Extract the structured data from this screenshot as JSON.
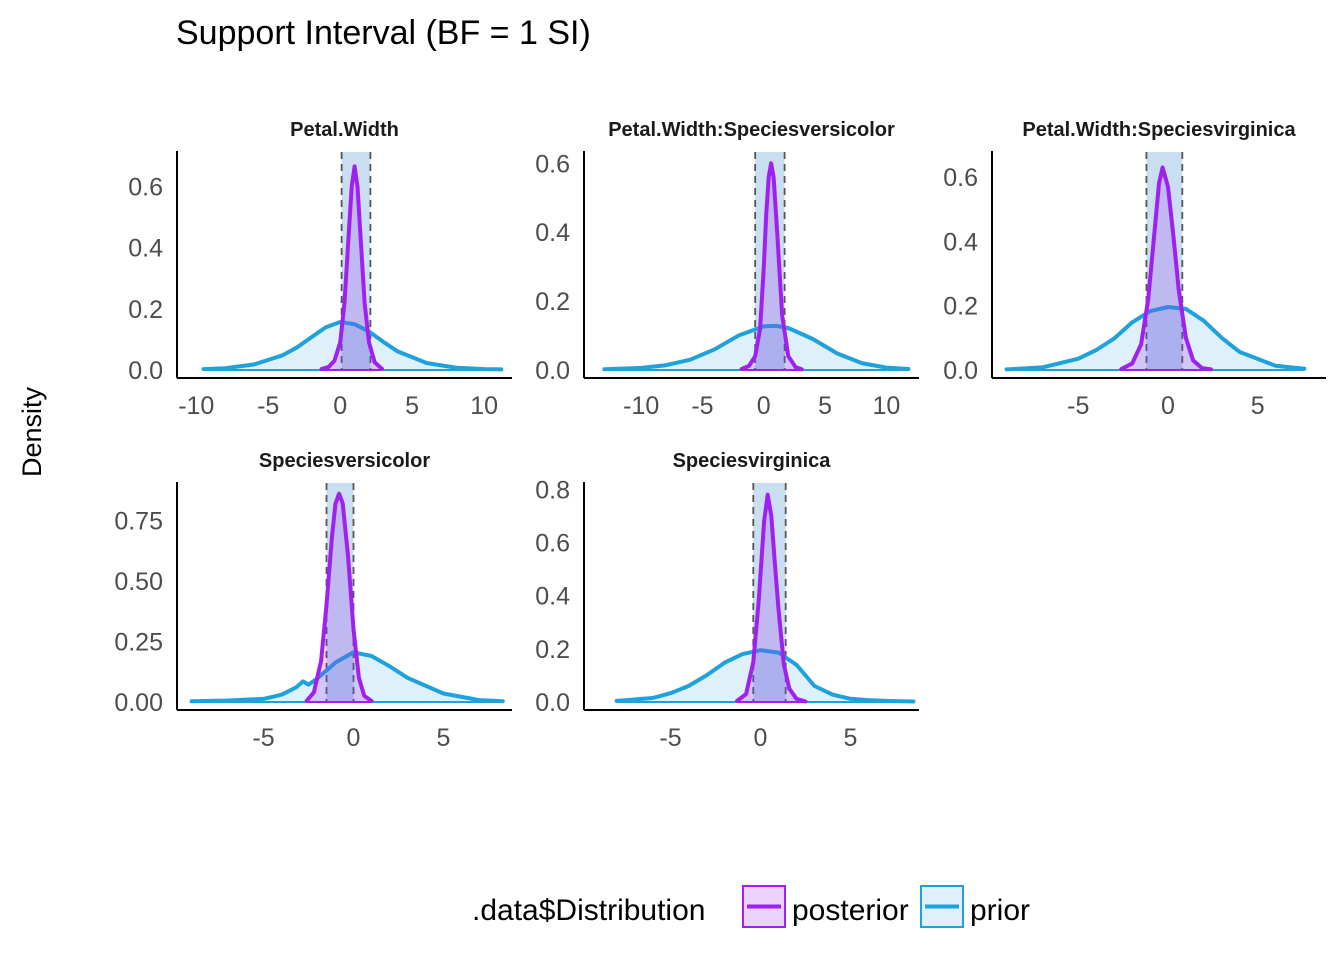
{
  "chart_data": {
    "type": "area",
    "title": "Support Interval (BF = 1 SI)",
    "xlabel": "",
    "ylabel": "Density",
    "legend": {
      "title": ".data$Distribution",
      "position": "bottom",
      "entries": [
        {
          "name": "posterior",
          "color": "#A020F0"
        },
        {
          "name": "prior",
          "color": "#1FA2DC"
        }
      ]
    },
    "panels": [
      {
        "name": "Petal.Width",
        "xlim": [
          -11.2,
          11.8
        ],
        "ylim": [
          0,
          0.71
        ],
        "xticks": [
          -10,
          -5,
          0,
          5,
          10
        ],
        "xtick_labels": [
          "-10",
          "-5",
          "0",
          "5",
          "10"
        ],
        "yticks": [
          0,
          0.2,
          0.4,
          0.6
        ],
        "ytick_labels": [
          "0.0",
          "0.2",
          "0.4",
          "0.6"
        ],
        "si": [
          0.1,
          2.1
        ],
        "series": [
          {
            "name": "prior",
            "x": [
              -9.5,
              -8,
              -6,
              -4,
              -3,
              -2,
              -1,
              0,
              1,
              2,
              3,
              4,
              6,
              8,
              10,
              11.2
            ],
            "y": [
              0.003,
              0.006,
              0.018,
              0.048,
              0.074,
              0.107,
              0.14,
              0.157,
              0.15,
              0.126,
              0.092,
              0.061,
              0.023,
              0.008,
              0.003,
              0.002
            ]
          },
          {
            "name": "posterior",
            "x": [
              -1.3,
              -0.8,
              -0.4,
              0,
              0.3,
              0.6,
              0.8,
              1.0,
              1.2,
              1.4,
              1.7,
              2.0,
              2.4,
              2.9
            ],
            "y": [
              0.003,
              0.01,
              0.03,
              0.09,
              0.22,
              0.45,
              0.6,
              0.666,
              0.6,
              0.45,
              0.22,
              0.09,
              0.025,
              0.004
            ]
          }
        ]
      },
      {
        "name": "Petal.Width:Speciesversicolor",
        "xlim": [
          -14.5,
          12.5
        ],
        "ylim": [
          0,
          0.63
        ],
        "xticks": [
          -10,
          -5,
          0,
          5,
          10
        ],
        "xtick_labels": [
          "-10",
          "-5",
          "0",
          "5",
          "10"
        ],
        "yticks": [
          0,
          0.2,
          0.4,
          0.6
        ],
        "ytick_labels": [
          "0.0",
          "0.2",
          "0.4",
          "0.6"
        ],
        "si": [
          -0.7,
          1.7
        ],
        "series": [
          {
            "name": "prior",
            "x": [
              -13,
              -10,
              -8,
              -6,
              -4,
              -2,
              0,
              1,
              2,
              4,
              6,
              8,
              10,
              11.8
            ],
            "y": [
              0.002,
              0.006,
              0.014,
              0.03,
              0.06,
              0.101,
              0.127,
              0.128,
              0.122,
              0.09,
              0.048,
              0.02,
              0.007,
              0.003
            ]
          },
          {
            "name": "posterior",
            "x": [
              -1.8,
              -1.2,
              -0.7,
              -0.3,
              0,
              0.2,
              0.4,
              0.6,
              0.8,
              1.1,
              1.5,
              2.0,
              2.6,
              3.1
            ],
            "y": [
              0.003,
              0.012,
              0.04,
              0.12,
              0.3,
              0.45,
              0.56,
              0.6,
              0.56,
              0.4,
              0.16,
              0.04,
              0.008,
              0.002
            ]
          }
        ]
      },
      {
        "name": "Petal.Width:Speciesvirginica",
        "xlim": [
          -9.7,
          8.7
        ],
        "ylim": [
          0,
          0.675
        ],
        "xticks": [
          -5,
          0,
          5
        ],
        "xtick_labels": [
          "-5",
          "0",
          "5"
        ],
        "yticks": [
          0,
          0.2,
          0.4,
          0.6
        ],
        "ytick_labels": [
          "0.0",
          "0.2",
          "0.4",
          "0.6"
        ],
        "si": [
          -1.2,
          0.8
        ],
        "series": [
          {
            "name": "prior",
            "x": [
              -9,
              -7,
              -5,
              -4,
              -3,
              -2,
              -1,
              0,
              1,
              2,
              3,
              4,
              6,
              7.6
            ],
            "y": [
              0.002,
              0.008,
              0.035,
              0.062,
              0.098,
              0.148,
              0.183,
              0.196,
              0.19,
              0.153,
              0.1,
              0.056,
              0.013,
              0.004
            ]
          },
          {
            "name": "posterior",
            "x": [
              -2.6,
              -2.0,
              -1.5,
              -1.1,
              -0.8,
              -0.5,
              -0.3,
              0,
              0.3,
              0.6,
              1.0,
              1.4,
              1.9,
              2.4
            ],
            "y": [
              0.003,
              0.02,
              0.08,
              0.22,
              0.4,
              0.58,
              0.63,
              0.57,
              0.42,
              0.25,
              0.1,
              0.03,
              0.006,
              0.002
            ]
          }
        ]
      },
      {
        "name": "Speciesversicolor",
        "xlim": [
          -9.7,
          8.7
        ],
        "ylim": [
          0,
          0.9
        ],
        "xticks": [
          -5,
          0,
          5
        ],
        "xtick_labels": [
          "-5",
          "0",
          "5"
        ],
        "yticks": [
          0,
          0.25,
          0.5,
          0.75
        ],
        "ytick_labels": [
          "0.00",
          "0.25",
          "0.50",
          "0.75"
        ],
        "si": [
          -1.5,
          0.0
        ],
        "series": [
          {
            "name": "prior",
            "x": [
              -9,
              -7,
              -5,
              -4,
              -3.2,
              -2.8,
              -2.5,
              -2,
              -1,
              0,
              1,
              2,
              3,
              5,
              7,
              8.3
            ],
            "y": [
              0.003,
              0.006,
              0.013,
              0.03,
              0.06,
              0.085,
              0.072,
              0.098,
              0.163,
              0.205,
              0.19,
              0.148,
              0.1,
              0.035,
              0.008,
              0.003
            ]
          },
          {
            "name": "posterior",
            "x": [
              -2.6,
              -2.2,
              -1.8,
              -1.5,
              -1.2,
              -1.0,
              -0.8,
              -0.6,
              -0.3,
              0,
              0.3,
              0.6,
              1.0
            ],
            "y": [
              0.005,
              0.04,
              0.17,
              0.4,
              0.68,
              0.82,
              0.86,
              0.82,
              0.6,
              0.3,
              0.1,
              0.025,
              0.004
            ]
          }
        ]
      },
      {
        "name": "Speciesvirginica",
        "xlim": [
          -9.7,
          8.7
        ],
        "ylim": [
          0,
          0.82
        ],
        "xticks": [
          -5,
          0,
          5
        ],
        "xtick_labels": [
          "-5",
          "0",
          "5"
        ],
        "yticks": [
          0,
          0.2,
          0.4,
          0.6,
          0.8
        ],
        "ytick_labels": [
          "0.0",
          "0.2",
          "0.4",
          "0.6",
          "0.8"
        ],
        "si": [
          -0.4,
          1.4
        ],
        "series": [
          {
            "name": "prior",
            "x": [
              -8,
              -6,
              -5,
              -4,
              -3,
              -2,
              -1,
              0,
              1,
              2,
              3,
              4,
              5,
              6,
              7,
              8.5
            ],
            "y": [
              0.004,
              0.015,
              0.033,
              0.06,
              0.1,
              0.148,
              0.18,
              0.195,
              0.186,
              0.14,
              0.06,
              0.028,
              0.012,
              0.007,
              0.004,
              0.002
            ]
          },
          {
            "name": "posterior",
            "x": [
              -1.3,
              -0.8,
              -0.4,
              -0.1,
              0.2,
              0.4,
              0.6,
              0.8,
              1.0,
              1.3,
              1.6,
              2.0,
              2.5
            ],
            "y": [
              0.004,
              0.03,
              0.15,
              0.38,
              0.68,
              0.78,
              0.7,
              0.52,
              0.35,
              0.14,
              0.05,
              0.012,
              0.002
            ]
          }
        ]
      }
    ]
  }
}
